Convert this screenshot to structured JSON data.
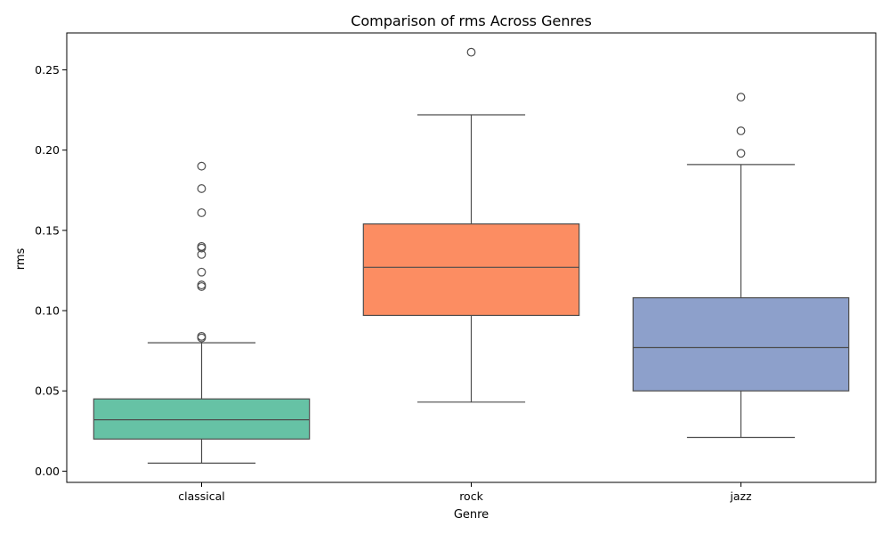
{
  "chart_data": {
    "type": "box",
    "title": "Comparison of rms Across Genres",
    "xlabel": "Genre",
    "ylabel": "rms",
    "ylim": [
      -0.007,
      0.273
    ],
    "yticks": [
      0.0,
      0.05,
      0.1,
      0.15,
      0.2,
      0.25
    ],
    "ytick_labels": [
      "0.00",
      "0.05",
      "0.10",
      "0.15",
      "0.20",
      "0.25"
    ],
    "grid": false,
    "categories": [
      "classical",
      "rock",
      "jazz"
    ],
    "boxes": [
      {
        "category": "classical",
        "color": "#66c2a5",
        "whisker_low": 0.005,
        "q1": 0.02,
        "median": 0.032,
        "q3": 0.045,
        "whisker_high": 0.08,
        "outliers": [
          0.083,
          0.084,
          0.115,
          0.116,
          0.124,
          0.135,
          0.139,
          0.14,
          0.161,
          0.176,
          0.19
        ]
      },
      {
        "category": "rock",
        "color": "#fc8d62",
        "whisker_low": 0.043,
        "q1": 0.097,
        "median": 0.127,
        "q3": 0.154,
        "whisker_high": 0.222,
        "outliers": [
          0.261
        ]
      },
      {
        "category": "jazz",
        "color": "#8da0cb",
        "whisker_low": 0.021,
        "q1": 0.05,
        "median": 0.077,
        "q3": 0.108,
        "whisker_high": 0.191,
        "outliers": [
          0.198,
          0.212,
          0.233
        ]
      }
    ]
  }
}
